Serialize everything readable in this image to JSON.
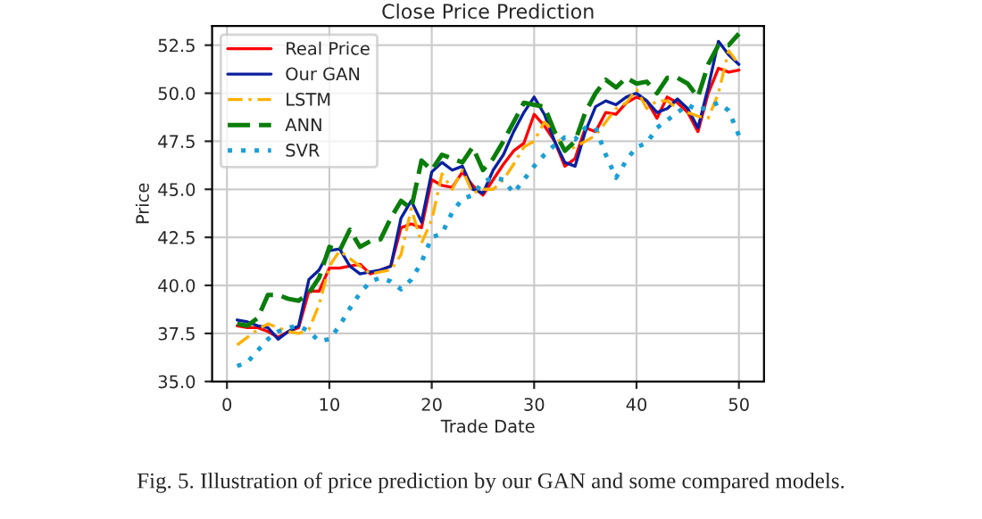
{
  "chart_data": {
    "type": "line",
    "title": "Close Price Prediction",
    "xlabel": "Trade Date",
    "ylabel": "Price",
    "annotations": [
      "Fig. 5. Illustration of price prediction by our GAN and some compared models."
    ],
    "x": [
      1,
      2,
      3,
      4,
      5,
      6,
      7,
      8,
      9,
      10,
      11,
      12,
      13,
      14,
      15,
      16,
      17,
      18,
      19,
      20,
      21,
      22,
      23,
      24,
      25,
      26,
      27,
      28,
      29,
      30,
      31,
      32,
      33,
      34,
      35,
      36,
      37,
      38,
      39,
      40,
      41,
      42,
      43,
      44,
      45,
      46,
      47,
      48,
      49,
      50
    ],
    "series": [
      {
        "name": "Real Price",
        "color": "#ff0000",
        "line_style": "solid",
        "values": [
          37.9,
          37.8,
          37.8,
          37.6,
          37.3,
          37.6,
          37.8,
          39.7,
          39.7,
          40.9,
          40.9,
          41.0,
          41.1,
          40.6,
          40.8,
          41.0,
          43.0,
          43.2,
          43.0,
          45.5,
          45.2,
          45.1,
          45.9,
          45.2,
          44.7,
          45.5,
          46.3,
          47.0,
          47.4,
          48.9,
          48.3,
          47.5,
          46.2,
          46.6,
          48.2,
          48.0,
          49.0,
          48.9,
          49.5,
          49.8,
          49.6,
          48.7,
          49.8,
          49.5,
          49.0,
          48.0,
          50.0,
          51.3,
          51.1,
          51.2
        ]
      },
      {
        "name": "Our GAN",
        "color": "#0a1fa0",
        "line_style": "solid",
        "values": [
          38.2,
          38.1,
          37.9,
          37.8,
          37.2,
          37.6,
          37.9,
          40.3,
          40.8,
          41.8,
          41.9,
          41.0,
          40.6,
          40.7,
          40.8,
          41.0,
          43.5,
          44.4,
          43.3,
          45.9,
          46.4,
          46.0,
          46.2,
          45.0,
          44.8,
          46.0,
          46.8,
          48.0,
          49.0,
          49.8,
          48.9,
          47.5,
          46.4,
          46.2,
          48.0,
          49.3,
          49.6,
          49.4,
          49.8,
          50.0,
          49.6,
          49.0,
          49.2,
          49.7,
          49.2,
          48.2,
          50.3,
          52.7,
          52.0,
          51.5
        ]
      },
      {
        "name": "LSTM",
        "color": "#ffb000",
        "line_style": "dashdot",
        "values": [
          36.9,
          37.3,
          37.7,
          38.0,
          37.8,
          37.6,
          37.5,
          37.7,
          39.0,
          41.0,
          41.8,
          41.4,
          41.0,
          40.6,
          40.7,
          40.8,
          41.6,
          44.0,
          42.2,
          43.4,
          45.8,
          45.0,
          46.0,
          44.8,
          45.0,
          45.0,
          45.5,
          46.3,
          47.2,
          47.5,
          48.5,
          48.0,
          47.0,
          47.2,
          47.5,
          47.8,
          48.5,
          49.2,
          49.5,
          50.2,
          49.2,
          49.6,
          49.6,
          49.2,
          49.0,
          48.8,
          48.7,
          50.0,
          52.2,
          51.5
        ]
      },
      {
        "name": "ANN",
        "color": "#0a7d0a",
        "line_style": "dashed",
        "values": [
          38.0,
          37.9,
          38.3,
          39.5,
          39.5,
          39.3,
          39.2,
          39.6,
          40.4,
          42.0,
          41.8,
          42.9,
          42.0,
          42.3,
          42.4,
          43.5,
          44.4,
          44.0,
          46.5,
          46.0,
          46.8,
          46.6,
          46.4,
          47.2,
          46.0,
          46.6,
          47.5,
          48.5,
          49.5,
          49.4,
          49.3,
          48.0,
          47.0,
          47.5,
          49.0,
          50.0,
          50.7,
          50.3,
          50.8,
          50.5,
          50.6,
          50.0,
          50.8,
          50.8,
          50.5,
          49.8,
          51.5,
          52.5,
          52.5,
          53.1
        ]
      },
      {
        "name": "SVR",
        "color": "#1a9fd6",
        "line_style": "dotted",
        "values": [
          35.8,
          36.0,
          36.6,
          37.2,
          37.6,
          37.8,
          37.9,
          37.6,
          37.1,
          37.2,
          37.9,
          38.8,
          39.6,
          40.2,
          40.4,
          40.2,
          39.8,
          40.3,
          41.2,
          42.5,
          42.7,
          43.8,
          44.5,
          44.7,
          45.4,
          45.6,
          45.5,
          44.8,
          45.5,
          46.2,
          46.8,
          47.3,
          47.7,
          47.6,
          48.2,
          48.2,
          46.8,
          45.6,
          46.5,
          47.2,
          47.4,
          48.2,
          48.6,
          49.0,
          49.4,
          49.1,
          49.3,
          49.5,
          49.1,
          47.8
        ]
      }
    ],
    "xlim": [
      -1.45,
      52.45
    ],
    "xticks": [
      0,
      10,
      20,
      30,
      40,
      50
    ],
    "ylim": [
      35,
      53.5
    ],
    "yticks": [
      {
        "value": 35,
        "label": "35.0"
      },
      {
        "value": 37.5,
        "label": "37.5"
      },
      {
        "value": 40,
        "label": "40.0"
      },
      {
        "value": 42.5,
        "label": "42.5"
      },
      {
        "value": 45,
        "label": "45.0"
      },
      {
        "value": 47.5,
        "label": "47.5"
      },
      {
        "value": 50,
        "label": "50.0"
      },
      {
        "value": 52.5,
        "label": "52.5"
      }
    ],
    "grid": true,
    "legend": "top left",
    "marker": "none"
  }
}
